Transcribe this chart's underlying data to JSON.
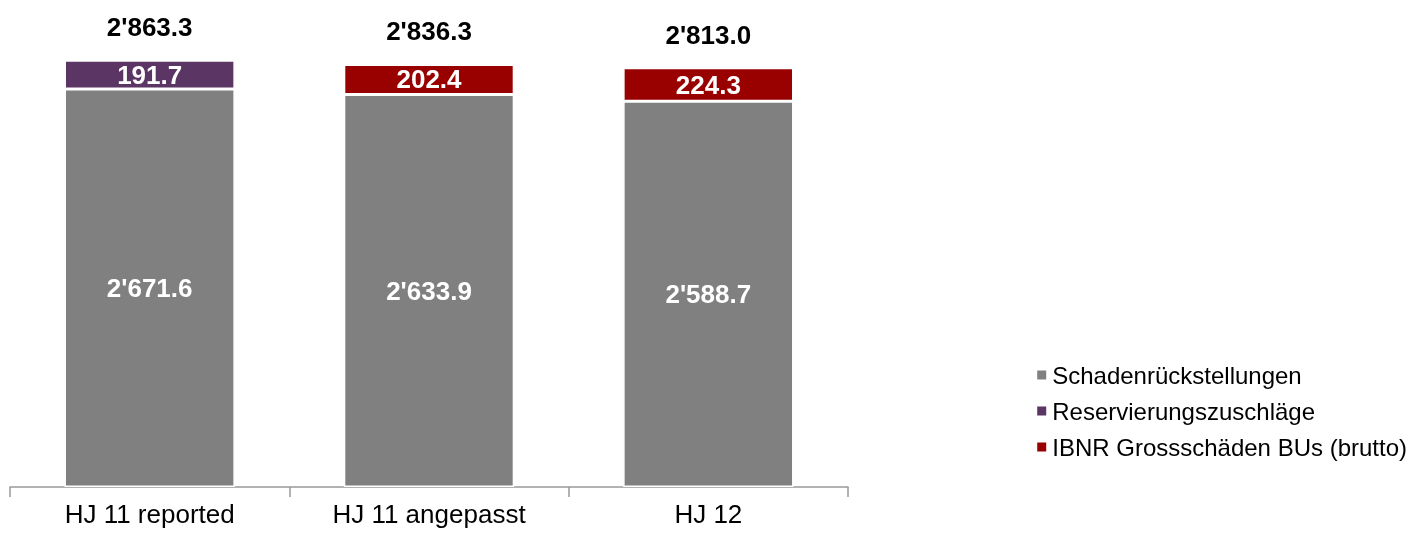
{
  "chart_data": {
    "type": "bar",
    "stacked": true,
    "categories": [
      "HJ 11 reported",
      "HJ 11 angepasst",
      "HJ 12"
    ],
    "series": [
      {
        "name": "Schadenrückstellungen",
        "color": "#808080",
        "values": [
          2671.6,
          2633.9,
          2588.7
        ],
        "value_labels": [
          "2'671.6",
          "2'633.9",
          "2'588.7"
        ]
      },
      {
        "name": "Reservierungszuschläge",
        "color": "#5b3563",
        "values": [
          191.7,
          null,
          null
        ],
        "value_labels": [
          "191.7",
          null,
          null
        ]
      },
      {
        "name": "IBNR Grossschäden BUs (brutto)",
        "color": "#990000",
        "values": [
          null,
          202.4,
          224.3
        ],
        "value_labels": [
          null,
          "202.4",
          "224.3"
        ]
      }
    ],
    "totals": [
      "2'863.3",
      "2'836.3",
      "2'813.0"
    ],
    "legend": "right",
    "tick_labels": "x"
  }
}
